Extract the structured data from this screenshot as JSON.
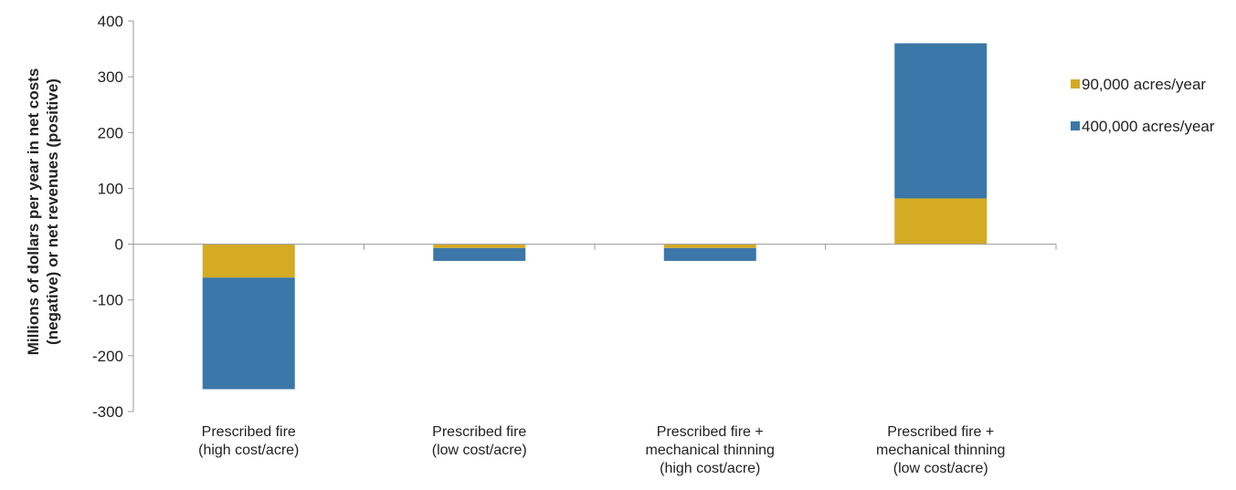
{
  "chart_data": {
    "type": "bar",
    "stacked": true,
    "categories": [
      [
        "Prescribed fire",
        "(high cost/acre)"
      ],
      [
        "Prescribed fire",
        "(low cost/acre)"
      ],
      [
        "Prescribed fire +",
        "mechanical thinning",
        "(high cost/acre)"
      ],
      [
        "Prescribed fire +",
        "mechanical thinning",
        "(low cost/acre)"
      ]
    ],
    "series": [
      {
        "name": "90,000 acres/year",
        "color": "#D4AB22",
        "values": [
          -60,
          -7,
          -7,
          82
        ]
      },
      {
        "name": "400,000 acres/year",
        "color": "#3B77A8",
        "values": [
          -200,
          -23,
          -23,
          278
        ]
      }
    ],
    "ylabel_lines": [
      "Millions of dollars per year in net costs",
      "(negative) or net revenues (positive)"
    ],
    "ylim": [
      -300,
      400
    ],
    "yticks": [
      400,
      300,
      200,
      100,
      0,
      -100,
      -200,
      -300
    ],
    "ytick_labels": [
      "400",
      "300",
      "200",
      "100",
      "0",
      "-100",
      "-200",
      "-300"
    ],
    "legend_position": "right",
    "grid": false
  }
}
